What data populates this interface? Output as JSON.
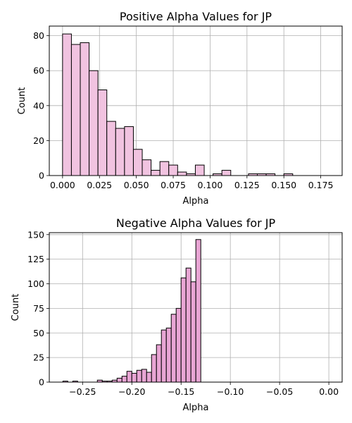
{
  "chart_data": [
    {
      "type": "bar",
      "title": "Positive Alpha Values for JP",
      "xlabel": "Alpha",
      "ylabel": "Count",
      "bar_color": "#f1c3e0",
      "edge_color": "#000000",
      "grid": true,
      "xlim": [
        -0.009,
        0.1895
      ],
      "ylim": [
        0,
        85.5
      ],
      "xticks": [
        0.0,
        0.025,
        0.05,
        0.075,
        0.1,
        0.125,
        0.15,
        0.175
      ],
      "xtick_labels": [
        "0.000",
        "0.025",
        "0.050",
        "0.075",
        "0.100",
        "0.125",
        "0.150",
        "0.175"
      ],
      "yticks": [
        0,
        20,
        40,
        60,
        80
      ],
      "ytick_labels": [
        "0",
        "20",
        "40",
        "60",
        "80"
      ],
      "bin_start": 0.0,
      "bin_width": 0.006,
      "values": [
        81,
        75,
        76,
        60,
        49,
        31,
        27,
        28,
        15,
        9,
        3,
        8,
        6,
        2,
        1,
        6,
        0,
        1,
        3,
        0,
        0,
        1,
        1,
        1,
        0,
        1
      ]
    },
    {
      "type": "bar",
      "title": "Negative Alpha Values for JP",
      "xlabel": "Alpha",
      "ylabel": "Count",
      "bar_color": "#e8a5d4",
      "edge_color": "#000000",
      "grid": true,
      "xlim": [
        -0.2838,
        0.0135
      ],
      "ylim": [
        0,
        152
      ],
      "xticks": [
        -0.25,
        -0.2,
        -0.15,
        -0.1,
        -0.05,
        0.0
      ],
      "xtick_labels": [
        "−0.25",
        "−0.20",
        "−0.15",
        "−0.10",
        "−0.05",
        "0.00"
      ],
      "yticks": [
        0,
        25,
        50,
        75,
        100,
        125,
        150
      ],
      "ytick_labels": [
        "0",
        "25",
        "50",
        "75",
        "100",
        "125",
        "150"
      ],
      "bin_start": -0.27,
      "bin_width": 0.005,
      "values": [
        1,
        0,
        1,
        0,
        0,
        0,
        0,
        2,
        1,
        1,
        2,
        4,
        6,
        11,
        9,
        12,
        13,
        10,
        28,
        38,
        53,
        55,
        69,
        75,
        106,
        116,
        102,
        145
      ]
    }
  ]
}
